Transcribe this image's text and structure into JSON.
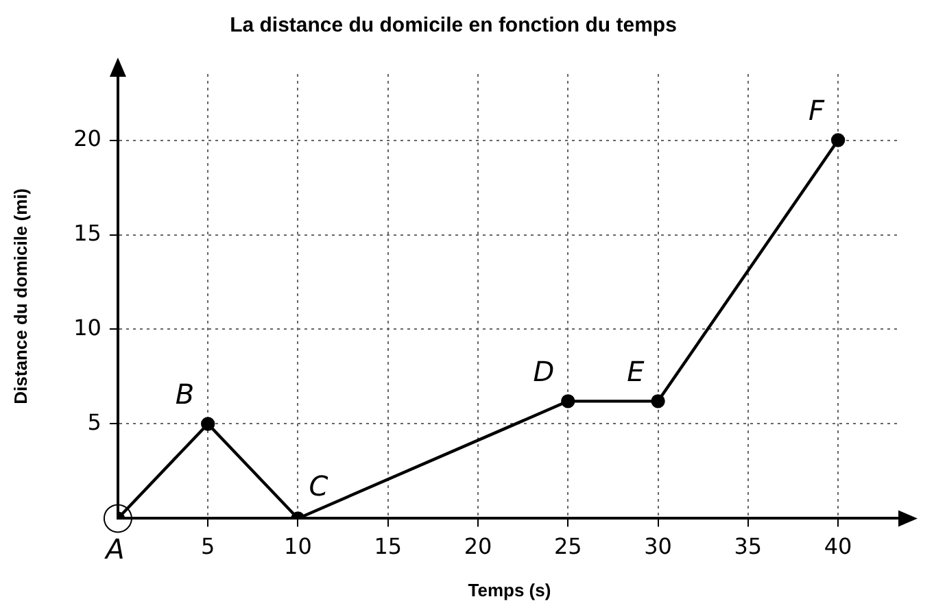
{
  "chart_data": {
    "type": "line",
    "title": "La distance du domicile en fonction du temps",
    "xlabel": "Temps (s)",
    "ylabel": "Distance du domicile (mi)",
    "x": [
      0,
      5,
      10,
      25,
      30,
      40
    ],
    "values": [
      0,
      5,
      0,
      6.2,
      6.2,
      20
    ],
    "color": "#000000",
    "marker": "circle",
    "line_style": "solid",
    "grid": true,
    "legend": false,
    "xlim": [
      0,
      43.5
    ],
    "xticks": [
      5,
      10,
      15,
      20,
      25,
      30,
      35,
      40
    ],
    "ylim": [
      0,
      23.5
    ],
    "yticks": [
      5,
      10,
      15,
      20
    ],
    "annotations": [
      {
        "text": "A",
        "x": 0,
        "y": 0
      },
      {
        "text": "B",
        "x": 5,
        "y": 5
      },
      {
        "text": "C",
        "x": 10,
        "y": 0
      },
      {
        "text": "D",
        "x": 25,
        "y": 6.2
      },
      {
        "text": "E",
        "x": 30,
        "y": 6.2
      },
      {
        "text": "F",
        "x": 40,
        "y": 20
      }
    ]
  }
}
